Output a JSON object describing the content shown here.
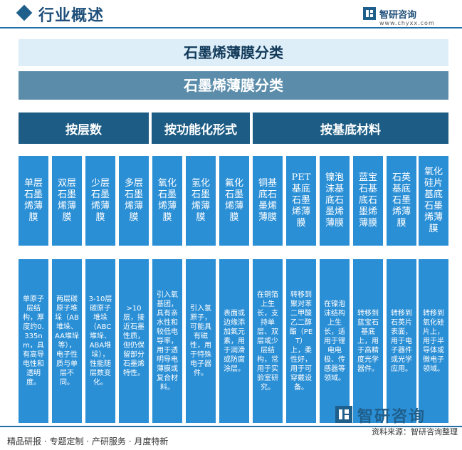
{
  "header": {
    "title": "行业概述",
    "brand_name": "智研咨询",
    "brand_url": "www.chyxx.com"
  },
  "titles": {
    "outer": "石墨烯薄膜分类",
    "inner": "石墨烯薄膜分类"
  },
  "categories": [
    {
      "label": "按层数"
    },
    {
      "label": "按功能化形式"
    },
    {
      "label": "按基底材料"
    }
  ],
  "columns": [
    {
      "head": "单层石墨烯薄膜",
      "desc": "单原子层结构，厚度约0.335nm，具有高导电性和透明度。"
    },
    {
      "head": "双层石墨烯薄膜",
      "desc": "两层碳原子堆垛（AB堆垛、AA堆垛等），电子性质与单层不同。"
    },
    {
      "head": "少层石墨烯薄膜",
      "desc": "3-10层碳原子堆垛（ABC堆垛、ABA堆垛），性能随层数变化。"
    },
    {
      "head": "多层石墨烯薄膜",
      "desc": ">10层，接近石墨性质，但仍保留部分石墨烯特性。"
    },
    {
      "head": "氧化石墨烯薄膜",
      "desc": "引入氧基团，具有亲水性和较低电导率，用于透明导电薄膜或复合材料。"
    },
    {
      "head": "氢化石墨烯薄膜",
      "desc": "引入氢原子，可能具有磁性，用于特殊电子器件。"
    },
    {
      "head": "氟化石墨烯薄膜",
      "desc": "表面或边缘添加氟元素，用于润滑或防腐涂层。"
    },
    {
      "head": "铜基底石墨烯薄膜",
      "desc": "在铜箔上生长，支持单层、双层或少层结构，常用于实验室研究。"
    },
    {
      "head": "PET基底石墨烯薄膜",
      "desc": "转移到聚对苯二甲酸乙二醇酯（PET）上，柔性好，用于可穿戴设备。"
    },
    {
      "head": "镍泡沫基底石墨烯薄膜",
      "desc": "在镍泡沫结构上生长，适用于锂电电极、传感器等领域。"
    },
    {
      "head": "蓝宝石基底石墨烯薄膜",
      "desc": "转移到蓝宝石基底上，用于高精度光学器件。"
    },
    {
      "head": "石英基底石墨烯薄膜",
      "desc": "转移到石英片表面，用于电子器件或光学应用。"
    },
    {
      "head": "氧化硅片基底石墨烯薄膜",
      "desc": "转移到氧化硅片上，用于半导体或微电子领域。"
    }
  ],
  "footer": {
    "left_text": "精品研报 · 专题定制 · 产研服务 · 月度特新",
    "source": "资料来源：智研咨询整理",
    "logo_text": "智研咨询"
  },
  "colors": {
    "category_bg": "#1d5c84",
    "box_bg": "#2b8fd6",
    "title_inner_bg": "#5b8dab",
    "title_outer_bg": "#ddeef8"
  }
}
